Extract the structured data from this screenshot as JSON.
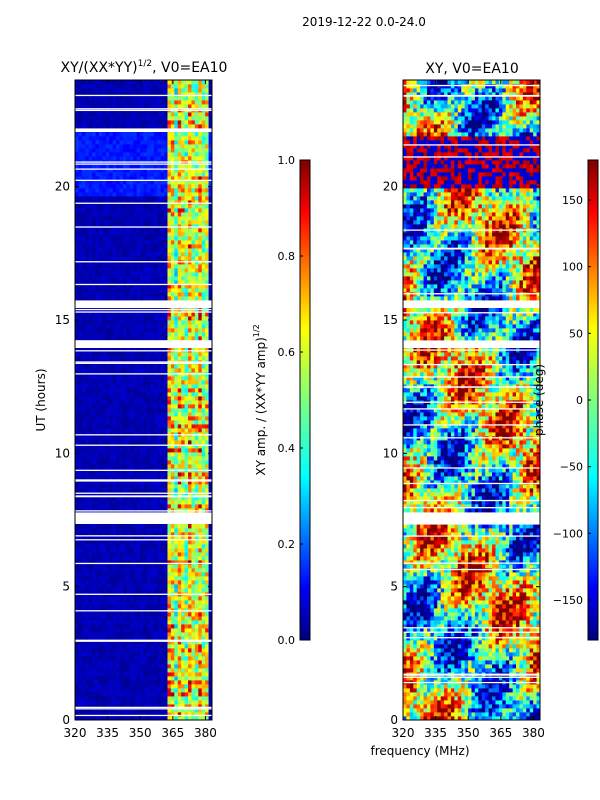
{
  "figure": {
    "suptitle": "2019-12-22 0.0-24.0",
    "shared_xlabel": "frequency (MHz)"
  },
  "chart_data": [
    {
      "type": "heatmap",
      "title": "XY/(XX*YY)",
      "title_exponent": "1/2",
      "title_suffix": ", V0=EA10",
      "xlabel": "frequency (MHz)",
      "ylabel": "UT (hours)",
      "xlim": [
        320,
        383
      ],
      "ylim": [
        0,
        24
      ],
      "xticks": [
        320,
        335,
        350,
        365,
        380
      ],
      "yticks": [
        0,
        5,
        10,
        15,
        20
      ],
      "signal_band_mhz": [
        361,
        380
      ],
      "colorbar": {
        "label": "XY amp. / (XX*YY amp)",
        "label_exponent": "1/2",
        "range": [
          0.0,
          1.0
        ],
        "ticks": [
          "0.0",
          "0.2",
          "0.4",
          "0.6",
          "0.8",
          "1.0"
        ],
        "colormap": "jet"
      },
      "flagged_time_ranges_hours": [
        [
          7.3,
          7.8
        ],
        [
          14.0,
          14.3
        ],
        [
          15.5,
          15.8
        ],
        [
          22.0,
          22.2
        ]
      ]
    },
    {
      "type": "heatmap",
      "title": "XY, V0=EA10",
      "xlabel": "frequency (MHz)",
      "ylabel": "",
      "xlim": [
        320,
        383
      ],
      "ylim": [
        0,
        24
      ],
      "xticks": [
        320,
        335,
        350,
        365,
        380
      ],
      "yticks": [
        0,
        5,
        10,
        15,
        20
      ],
      "colorbar": {
        "label": "phase (deg)",
        "range": [
          -180,
          180
        ],
        "ticks": [
          "150",
          "100",
          "50",
          "0",
          "−50",
          "−100",
          "−150"
        ],
        "colormap": "jet"
      },
      "flagged_time_ranges_hours": [
        [
          7.3,
          7.8
        ],
        [
          14.0,
          14.3
        ],
        [
          15.5,
          15.8
        ]
      ]
    }
  ]
}
